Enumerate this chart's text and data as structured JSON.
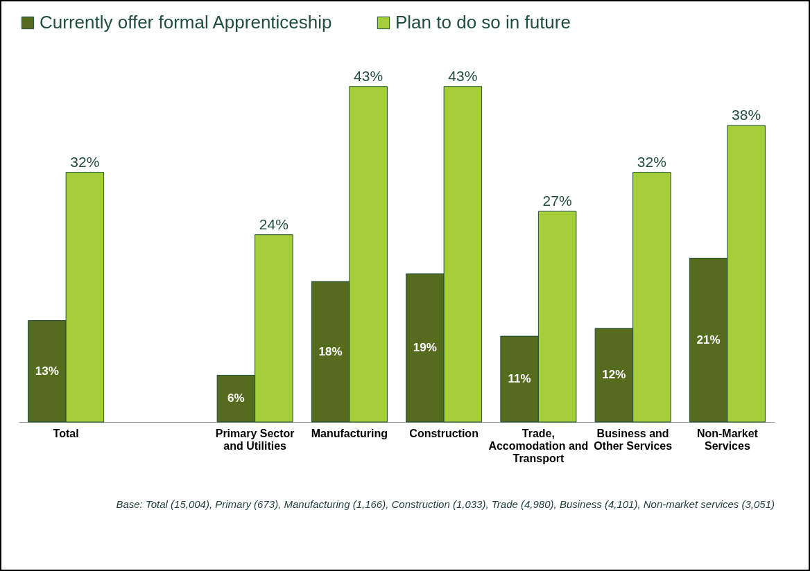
{
  "chart_data": {
    "type": "bar",
    "categories": [
      "Total",
      null,
      "Primary Sector and Utilities",
      "Manufacturing",
      "Construction",
      "Trade, Accomodation and Transport",
      "Business and Other Services",
      "Non-Market Services"
    ],
    "series": [
      {
        "name": "Currently offer formal Apprenticeship",
        "color": "#556b1e",
        "values": [
          13,
          null,
          6,
          18,
          19,
          11,
          12,
          21
        ],
        "value_labels": [
          "13%",
          null,
          "6%",
          "18%",
          "19%",
          "11%",
          "12%",
          "21%"
        ]
      },
      {
        "name": "Plan to do so in future",
        "color": "#a6ce39",
        "values": [
          32,
          null,
          24,
          43,
          43,
          27,
          32,
          38
        ],
        "value_labels": [
          "32%",
          null,
          "24%",
          "43%",
          "43%",
          "27%",
          "32%",
          "38%"
        ]
      }
    ],
    "legend": "top",
    "annotations": [
      "Base: Total (15,004), Primary (673), Manufacturing (1,166), Construction (1,033), Trade (4,980), Business (4,101), Non-market services (3,051)"
    ]
  }
}
